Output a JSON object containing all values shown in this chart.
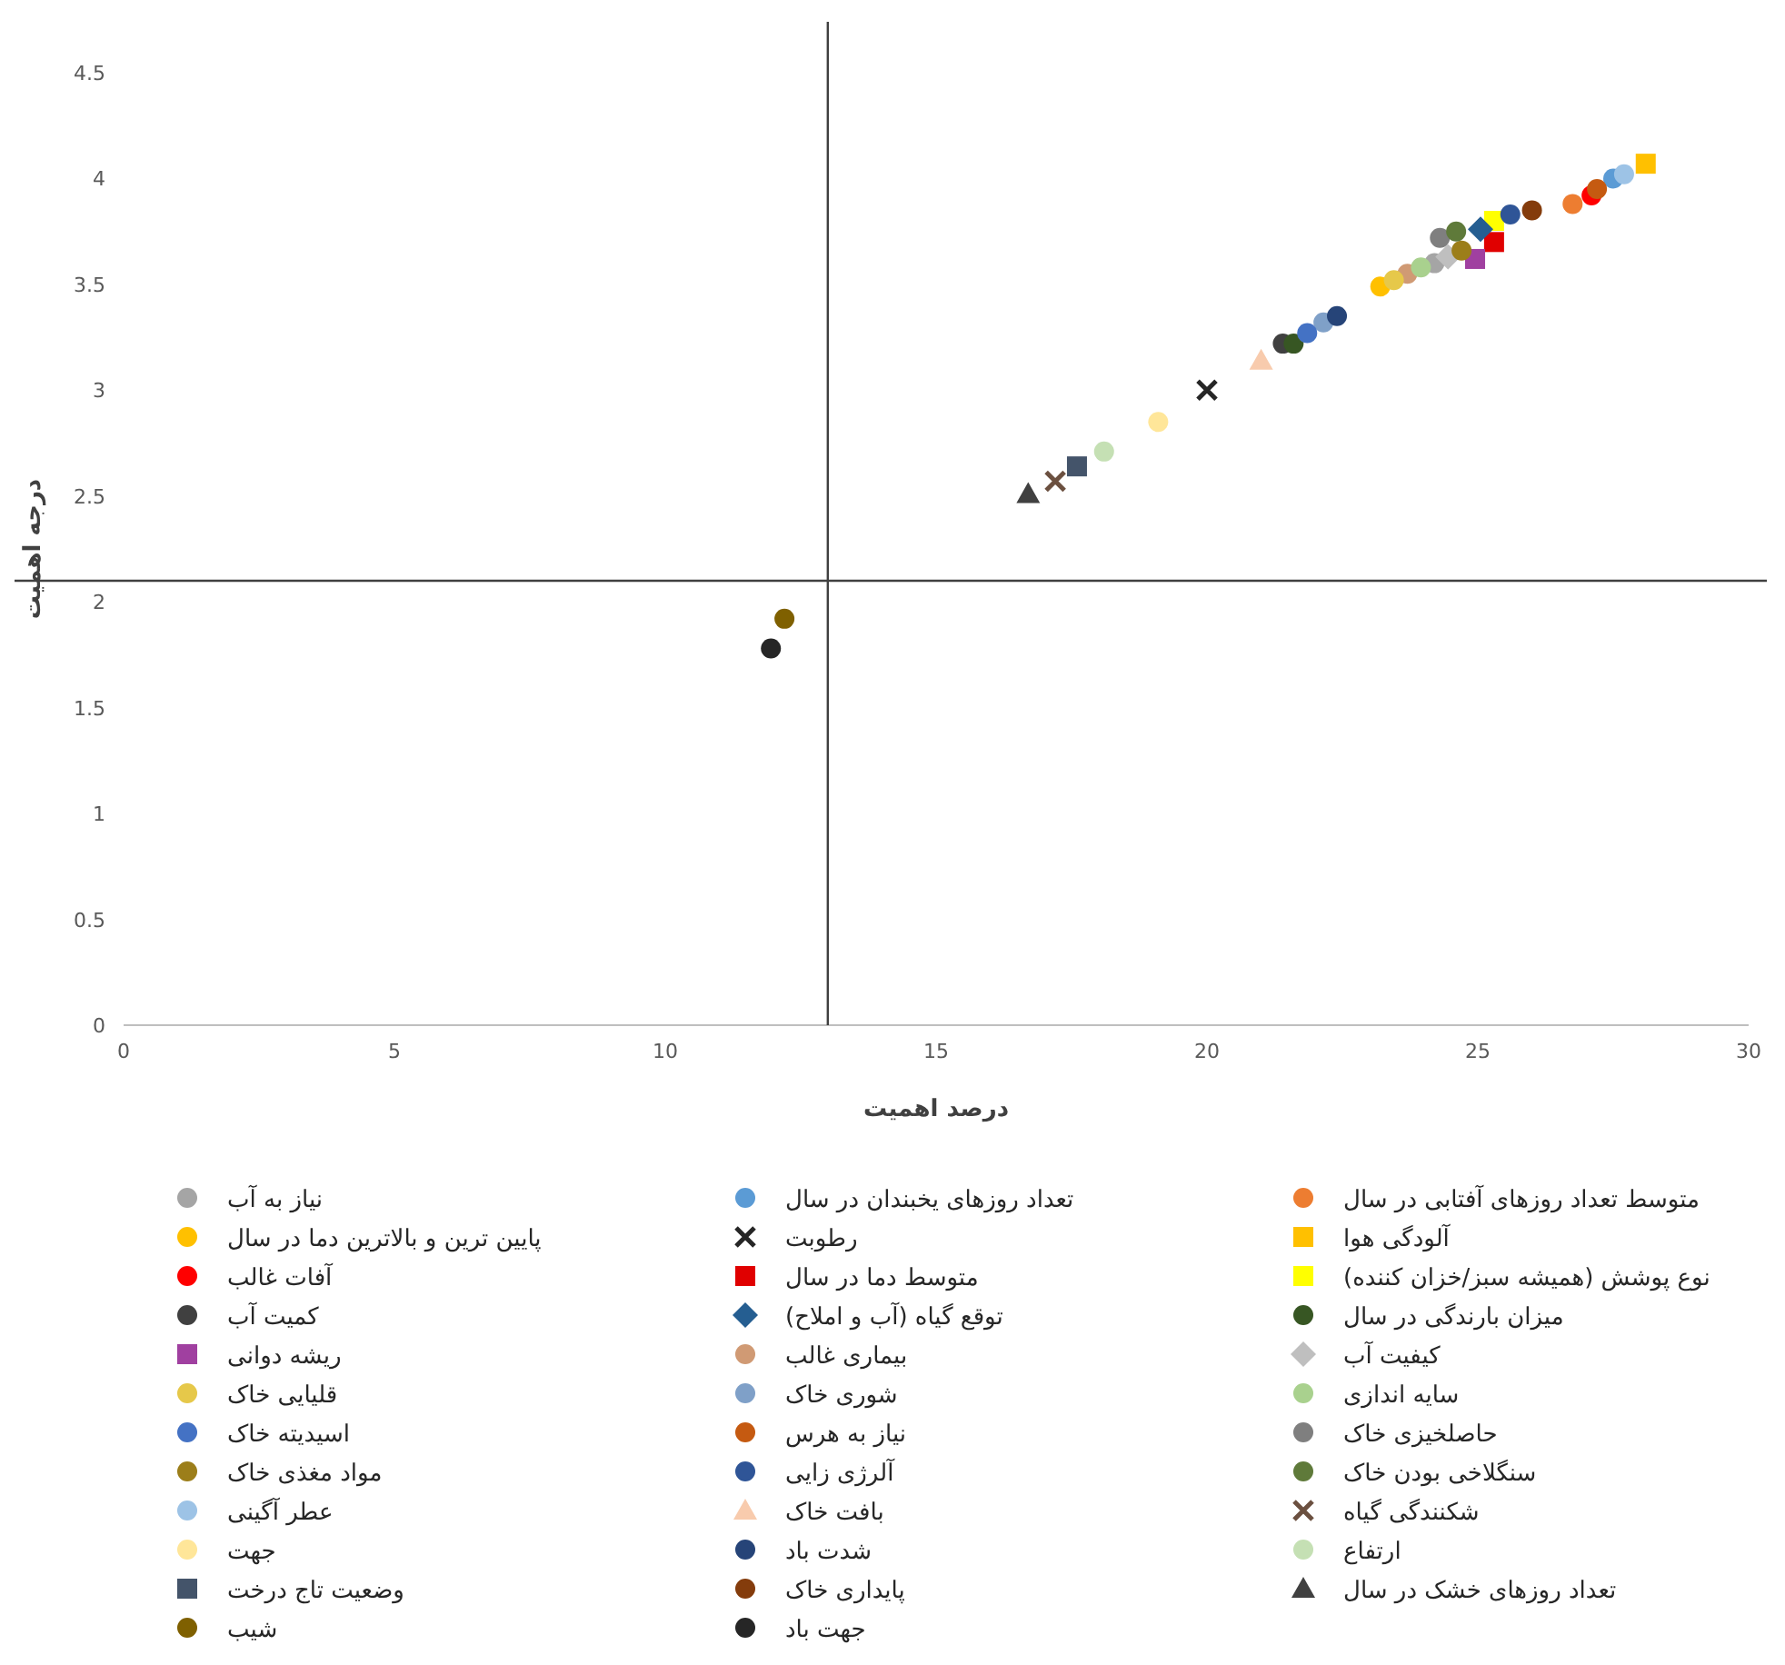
{
  "chart_data": {
    "type": "scatter",
    "xlabel": "درصد اهمیت",
    "ylabel": "درجه اهمیت",
    "xlim": [
      0,
      30
    ],
    "ylim": [
      0,
      4.5
    ],
    "xticks": [
      0,
      5,
      10,
      15,
      20,
      25,
      30
    ],
    "yticks": [
      0,
      0.5,
      1,
      1.5,
      2,
      2.5,
      3,
      3.5,
      4,
      4.5
    ],
    "grid": false,
    "legend": "bottom",
    "ref_lines": [
      {
        "axis": "x",
        "value": 13,
        "color": "#404040"
      },
      {
        "axis": "y",
        "value": 2.1,
        "color": "#404040"
      }
    ],
    "series": [
      {
        "name": "نیاز به آب",
        "color": "#a5a5a5",
        "marker": "circle",
        "x": [
          24.2
        ],
        "values": [
          3.6
        ]
      },
      {
        "name": "تعداد روزهای یخبندان در سال",
        "color": "#5b9bd5",
        "marker": "circle",
        "x": [
          27.5
        ],
        "values": [
          4.0
        ]
      },
      {
        "name": "متوسط تعداد روزهای آفتابی در سال",
        "color": "#ed7d31",
        "marker": "circle",
        "x": [
          26.75
        ],
        "values": [
          3.88
        ]
      },
      {
        "name": "پایین ترین و بالاترین دما در سال",
        "color": "#ffc000",
        "marker": "circle",
        "x": [
          23.2
        ],
        "values": [
          3.49
        ]
      },
      {
        "name": "رطوبت",
        "color": "#262626",
        "marker": "cross",
        "x": [
          20.0
        ],
        "values": [
          3.0
        ]
      },
      {
        "name": "آلودگی هوا",
        "color": "#ffc000",
        "marker": "square",
        "x": [
          28.1
        ],
        "values": [
          4.07
        ]
      },
      {
        "name": "آفات غالب",
        "color": "#ff0000",
        "marker": "circle",
        "x": [
          27.1
        ],
        "values": [
          3.92
        ]
      },
      {
        "name": "متوسط دما در سال",
        "color": "#e00000",
        "marker": "square",
        "x": [
          25.3
        ],
        "values": [
          3.7
        ]
      },
      {
        "name": "نوع پوشش (همیشه سبز/خزان کننده)",
        "color": "#ffff00",
        "marker": "square",
        "x": [
          25.3
        ],
        "values": [
          3.8
        ]
      },
      {
        "name": "کمیت آب",
        "color": "#404040",
        "marker": "circle",
        "x": [
          21.4
        ],
        "values": [
          3.22
        ]
      },
      {
        "name": "توقع گیاه (آب و املاح)",
        "color": "#255e91",
        "marker": "diamond",
        "x": [
          25.05
        ],
        "values": [
          3.76
        ]
      },
      {
        "name": "میزان بارندگی در سال",
        "color": "#375623",
        "marker": "circle",
        "x": [
          21.6
        ],
        "values": [
          3.22
        ]
      },
      {
        "name": "ریشه دوانی",
        "color": "#a040a0",
        "marker": "square",
        "x": [
          24.95
        ],
        "values": [
          3.62
        ]
      },
      {
        "name": "بیماری غالب",
        "color": "#d09a74",
        "marker": "circle",
        "x": [
          23.7
        ],
        "values": [
          3.55
        ]
      },
      {
        "name": "کیفیت آب",
        "color": "#bfbfbf",
        "marker": "diamond",
        "x": [
          24.45
        ],
        "values": [
          3.63
        ]
      },
      {
        "name": "قلیایی خاک",
        "color": "#e6c84a",
        "marker": "circle",
        "x": [
          23.45
        ],
        "values": [
          3.52
        ]
      },
      {
        "name": "شوری خاک",
        "color": "#7fa0c8",
        "marker": "circle",
        "x": [
          22.15
        ],
        "values": [
          3.32
        ]
      },
      {
        "name": "سایه اندازی",
        "color": "#a9d18e",
        "marker": "circle",
        "x": [
          23.95
        ],
        "values": [
          3.58
        ]
      },
      {
        "name": "اسیدیته خاک",
        "color": "#4472c4",
        "marker": "circle",
        "x": [
          21.85
        ],
        "values": [
          3.27
        ]
      },
      {
        "name": "نیاز به هرس",
        "color": "#c55a11",
        "marker": "circle",
        "x": [
          27.2
        ],
        "values": [
          3.95
        ]
      },
      {
        "name": "حاصلخیزی خاک",
        "color": "#7f7f7f",
        "marker": "circle",
        "x": [
          24.3
        ],
        "values": [
          3.72
        ]
      },
      {
        "name": "مواد مغذی خاک",
        "color": "#9c7e1a",
        "marker": "circle",
        "x": [
          24.7
        ],
        "values": [
          3.66
        ]
      },
      {
        "name": "آلرژی زایی",
        "color": "#2f5597",
        "marker": "circle",
        "x": [
          25.6
        ],
        "values": [
          3.83
        ]
      },
      {
        "name": "سنگلاخی بودن خاک",
        "color": "#5f7a3a",
        "marker": "circle",
        "x": [
          24.6
        ],
        "values": [
          3.75
        ]
      },
      {
        "name": "عطر آگینی",
        "color": "#9dc3e6",
        "marker": "circle",
        "x": [
          27.7
        ],
        "values": [
          4.02
        ]
      },
      {
        "name": "بافت خاک",
        "color": "#f8cbad",
        "marker": "triangle",
        "x": [
          21.0
        ],
        "values": [
          3.14
        ]
      },
      {
        "name": "شکنندگی گیاه",
        "color": "#6b5040",
        "marker": "cross",
        "x": [
          17.2
        ],
        "values": [
          2.57
        ]
      },
      {
        "name": "جهت",
        "color": "#ffe699",
        "marker": "circle",
        "x": [
          19.1
        ],
        "values": [
          2.85
        ]
      },
      {
        "name": "شدت باد",
        "color": "#264478",
        "marker": "circle",
        "x": [
          22.4
        ],
        "values": [
          3.35
        ]
      },
      {
        "name": "ارتفاع",
        "color": "#c5e0b4",
        "marker": "circle",
        "x": [
          18.1
        ],
        "values": [
          2.71
        ]
      },
      {
        "name": "وضعیت تاج درخت",
        "color": "#44546a",
        "marker": "square",
        "x": [
          17.6
        ],
        "values": [
          2.64
        ]
      },
      {
        "name": "پایداری خاک",
        "color": "#843c0c",
        "marker": "circle",
        "x": [
          26.0
        ],
        "values": [
          3.85
        ]
      },
      {
        "name": "تعداد روزهای خشک در سال",
        "color": "#404040",
        "marker": "triangle",
        "x": [
          16.7
        ],
        "values": [
          2.51
        ]
      },
      {
        "name": "شیب",
        "color": "#7f6000",
        "marker": "circle",
        "x": [
          12.2
        ],
        "values": [
          1.92
        ]
      },
      {
        "name": "جهت باد",
        "color": "#262626",
        "marker": "circle",
        "x": [
          11.95
        ],
        "values": [
          1.78
        ]
      }
    ]
  }
}
